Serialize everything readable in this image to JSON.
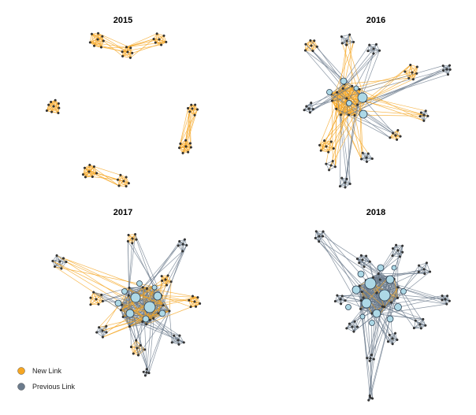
{
  "colors": {
    "new_link": "#F5A623",
    "previous_link": "#6B7B8C",
    "hub_node": "#ADD8E6",
    "small_node": "#3A3A3A"
  },
  "panels": [
    {
      "title": "2015"
    },
    {
      "title": "2016"
    },
    {
      "title": "2017"
    },
    {
      "title": "2018"
    }
  ],
  "legend": [
    {
      "label": "New Link",
      "color": "#F5A623"
    },
    {
      "label": "Previous Link",
      "color": "#6B7B8C"
    }
  ]
}
